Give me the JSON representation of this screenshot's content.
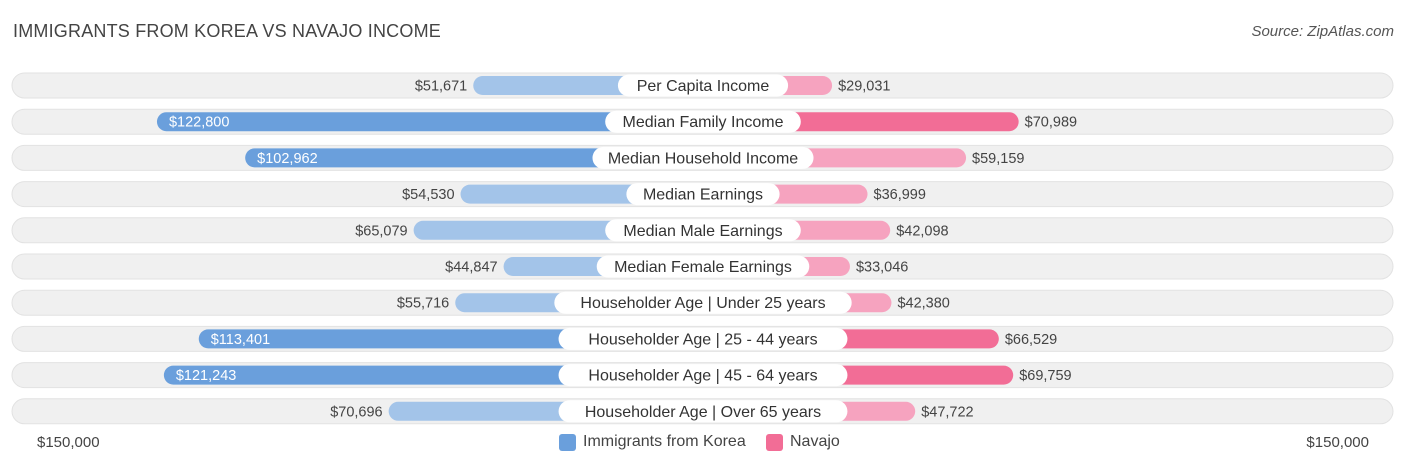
{
  "header": {
    "title": "IMMIGRANTS FROM KOREA VS NAVAJO INCOME",
    "source": "Source: ZipAtlas.com"
  },
  "axis": {
    "left_label": "$150,000",
    "right_label": "$150,000"
  },
  "legend": {
    "left": "Immigrants from Korea",
    "right": "Navajo"
  },
  "colors": {
    "left_strong": "#6a9fdc",
    "left_light": "#a3c4e9",
    "right_strong": "#f26d96",
    "right_light": "#f6a3bf",
    "row_bg": "#f0f0f0"
  },
  "chart_data": {
    "type": "bar",
    "orientation": "diverging-horizontal",
    "title": "IMMIGRANTS FROM KOREA VS NAVAJO INCOME",
    "xlim": [
      0,
      150000
    ],
    "categories": [
      "Per Capita Income",
      "Median Family Income",
      "Median Household Income",
      "Median Earnings",
      "Median Male Earnings",
      "Median Female Earnings",
      "Householder Age | Under 25 years",
      "Householder Age | 25 - 44 years",
      "Householder Age | 45 - 64 years",
      "Householder Age | Over 65 years"
    ],
    "series": [
      {
        "name": "Immigrants from Korea",
        "values": [
          51671,
          122800,
          102962,
          54530,
          65079,
          44847,
          55716,
          113401,
          121243,
          70696
        ],
        "labels": [
          "$51,671",
          "$122,800",
          "$102,962",
          "$54,530",
          "$65,079",
          "$44,847",
          "$55,716",
          "$113,401",
          "$121,243",
          "$70,696"
        ]
      },
      {
        "name": "Navajo",
        "values": [
          29031,
          70989,
          59159,
          36999,
          42098,
          33046,
          42380,
          66529,
          69759,
          47722
        ],
        "labels": [
          "$29,031",
          "$70,989",
          "$59,159",
          "$36,999",
          "$42,098",
          "$33,046",
          "$42,380",
          "$66,529",
          "$69,759",
          "$47,722"
        ]
      }
    ]
  }
}
